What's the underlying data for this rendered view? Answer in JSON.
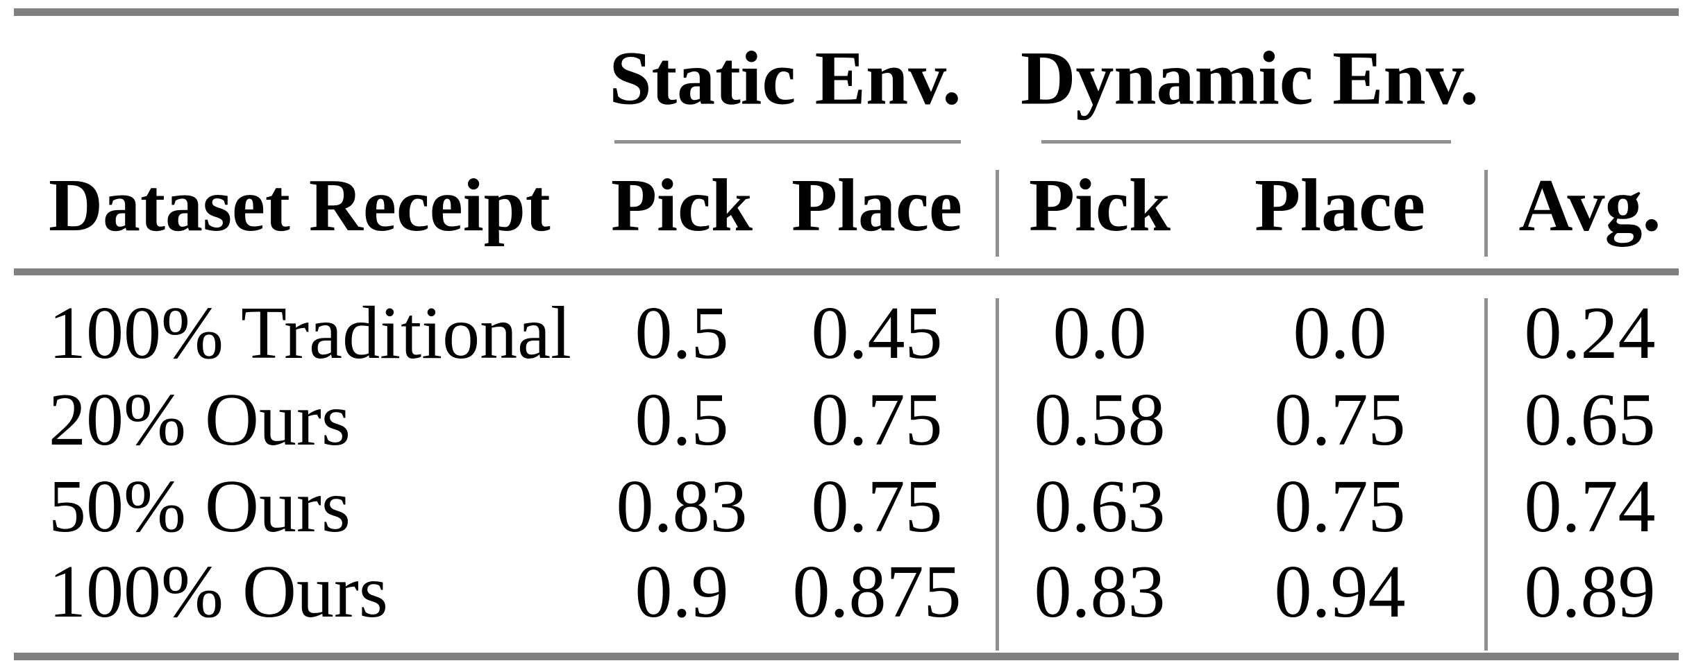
{
  "table": {
    "col_groups": [
      {
        "label": "Static Env."
      },
      {
        "label": "Dynamic Env."
      }
    ],
    "headers": {
      "dataset": "Dataset Receipt",
      "static_pick": "Pick",
      "static_place": "Place",
      "dynamic_pick": "Pick",
      "dynamic_place": "Place",
      "avg": "Avg."
    },
    "rows": [
      {
        "label": "100% Traditional",
        "static_pick": "0.5",
        "static_place": "0.45",
        "dynamic_pick": "0.0",
        "dynamic_place": "0.0",
        "avg": "0.24"
      },
      {
        "label": "20% Ours",
        "static_pick": "0.5",
        "static_place": "0.75",
        "dynamic_pick": "0.58",
        "dynamic_place": "0.75",
        "avg": "0.65"
      },
      {
        "label": "50% Ours",
        "static_pick": "0.83",
        "static_place": "0.75",
        "dynamic_pick": "0.63",
        "dynamic_place": "0.75",
        "avg": "0.74"
      },
      {
        "label": "100% Ours",
        "static_pick": "0.9",
        "static_place": "0.875",
        "dynamic_pick": "0.83",
        "dynamic_place": "0.94",
        "avg": "0.89"
      }
    ],
    "colors": {
      "text": "#000000",
      "thick_rule": "#808080",
      "thin_rule": "#909090",
      "background": "#ffffff"
    }
  },
  "chart_data": {
    "type": "table",
    "title": "",
    "columns": [
      "Dataset Receipt",
      "Static Env. Pick",
      "Static Env. Place",
      "Dynamic Env. Pick",
      "Dynamic Env. Place",
      "Avg."
    ],
    "rows": [
      [
        "100% Traditional",
        0.5,
        0.45,
        0.0,
        0.0,
        0.24
      ],
      [
        "20% Ours",
        0.5,
        0.75,
        0.58,
        0.75,
        0.65
      ],
      [
        "50% Ours",
        0.83,
        0.75,
        0.63,
        0.75,
        0.74
      ],
      [
        "100% Ours",
        0.9,
        0.875,
        0.83,
        0.94,
        0.89
      ]
    ]
  }
}
